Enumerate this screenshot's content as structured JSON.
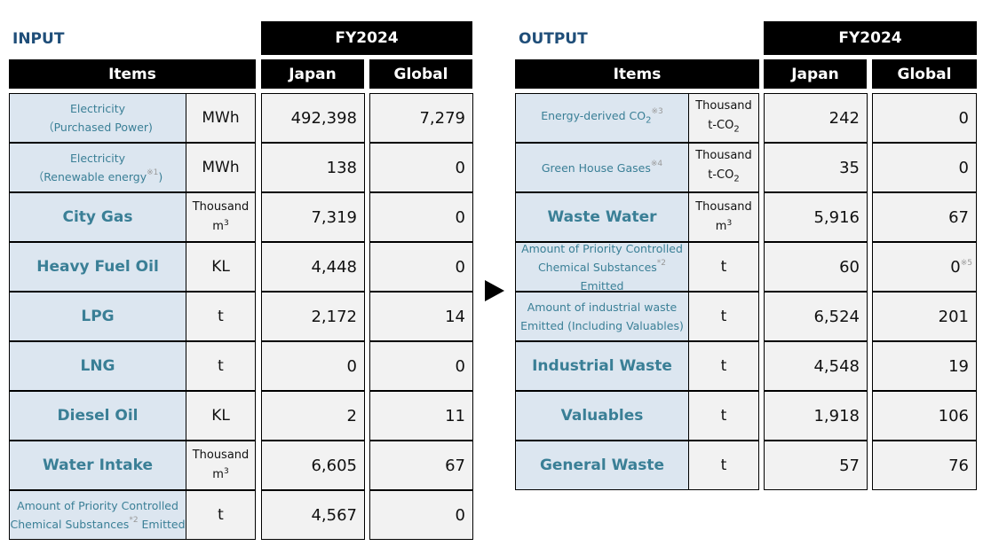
{
  "input": {
    "title": "INPUT",
    "fy": "FY2024",
    "items": "Items",
    "japan": "Japan",
    "global": "Global",
    "rows": [
      {
        "size": "small",
        "label": [
          {
            "text": "Electricity"
          },
          {
            "text": "（Purchased Power)"
          }
        ],
        "unit": [
          "MWh"
        ],
        "japan": "492,398",
        "global": "7,279"
      },
      {
        "size": "small",
        "label": [
          {
            "text": "Electricity"
          },
          {
            "text": "（Renewable energy",
            "sup": "※1",
            "after": ")"
          }
        ],
        "unit": [
          "MWh"
        ],
        "japan": "138",
        "global": "0"
      },
      {
        "size": "big",
        "label": [
          {
            "text": "City Gas"
          }
        ],
        "unit": [
          "Thousand",
          "m",
          "3"
        ],
        "japan": "7,319",
        "global": "0"
      },
      {
        "size": "big",
        "label": [
          {
            "text": "Heavy Fuel Oil"
          }
        ],
        "unit": [
          "KL"
        ],
        "japan": "4,448",
        "global": "0"
      },
      {
        "size": "big",
        "label": [
          {
            "text": "LPG"
          }
        ],
        "unit": [
          "t"
        ],
        "japan": "2,172",
        "global": "14"
      },
      {
        "size": "big",
        "label": [
          {
            "text": "LNG"
          }
        ],
        "unit": [
          "t"
        ],
        "japan": "0",
        "global": "0"
      },
      {
        "size": "big",
        "label": [
          {
            "text": "Diesel Oil"
          }
        ],
        "unit": [
          "KL"
        ],
        "japan": "2",
        "global": "11"
      },
      {
        "size": "big",
        "label": [
          {
            "text": "Water Intake"
          }
        ],
        "unit": [
          "Thousand",
          "m",
          "3"
        ],
        "japan": "6,605",
        "global": "67"
      },
      {
        "size": "small",
        "label": [
          {
            "text": "Amount of Priority Controlled"
          },
          {
            "text": "Chemical Substances",
            "sup": "*2",
            "after": " Emitted"
          }
        ],
        "unit": [
          "t"
        ],
        "japan": "4,567",
        "global": "0"
      }
    ]
  },
  "output": {
    "title": "OUTPUT",
    "fy": "FY2024",
    "items": "Items",
    "japan": "Japan",
    "global": "Global",
    "rows": [
      {
        "size": "small",
        "label": [
          {
            "text": "Energy-derived CO",
            "sub": "2",
            "sup": "※3"
          }
        ],
        "unit": [
          "Thousand",
          "t-CO",
          "2"
        ],
        "japan": "242",
        "global": "0"
      },
      {
        "size": "small",
        "label": [
          {
            "text": "Green House Gases",
            "sup": "※4"
          }
        ],
        "unit": [
          "Thousand",
          "t-CO",
          "2"
        ],
        "japan": "35",
        "global": "0"
      },
      {
        "size": "big",
        "label": [
          {
            "text": "Waste Water"
          }
        ],
        "unit": [
          "Thousand",
          "m",
          "3"
        ],
        "japan": "5,916",
        "global": "67"
      },
      {
        "size": "small",
        "label": [
          {
            "text": "Amount of Priority Controlled"
          },
          {
            "text": "Chemical Substances",
            "sup": "*2"
          },
          {
            "text": "Emitted"
          }
        ],
        "unit": [
          "t"
        ],
        "japan": "60",
        "global": "0",
        "global_note": "※5"
      },
      {
        "size": "small",
        "label": [
          {
            "text": "Amount of industrial waste"
          },
          {
            "text": "Emitted (Including Valuables)"
          }
        ],
        "unit": [
          "t"
        ],
        "japan": "6,524",
        "global": "201"
      },
      {
        "size": "big",
        "label": [
          {
            "text": "Industrial Waste"
          }
        ],
        "unit": [
          "t"
        ],
        "japan": "4,548",
        "global": "19"
      },
      {
        "size": "big",
        "label": [
          {
            "text": "Valuables"
          }
        ],
        "unit": [
          "t"
        ],
        "japan": "1,918",
        "global": "106"
      },
      {
        "size": "big",
        "label": [
          {
            "text": "General Waste"
          }
        ],
        "unit": [
          "t"
        ],
        "japan": "57",
        "global": "76"
      }
    ]
  },
  "arrow_icon": "right-triangle-arrow"
}
